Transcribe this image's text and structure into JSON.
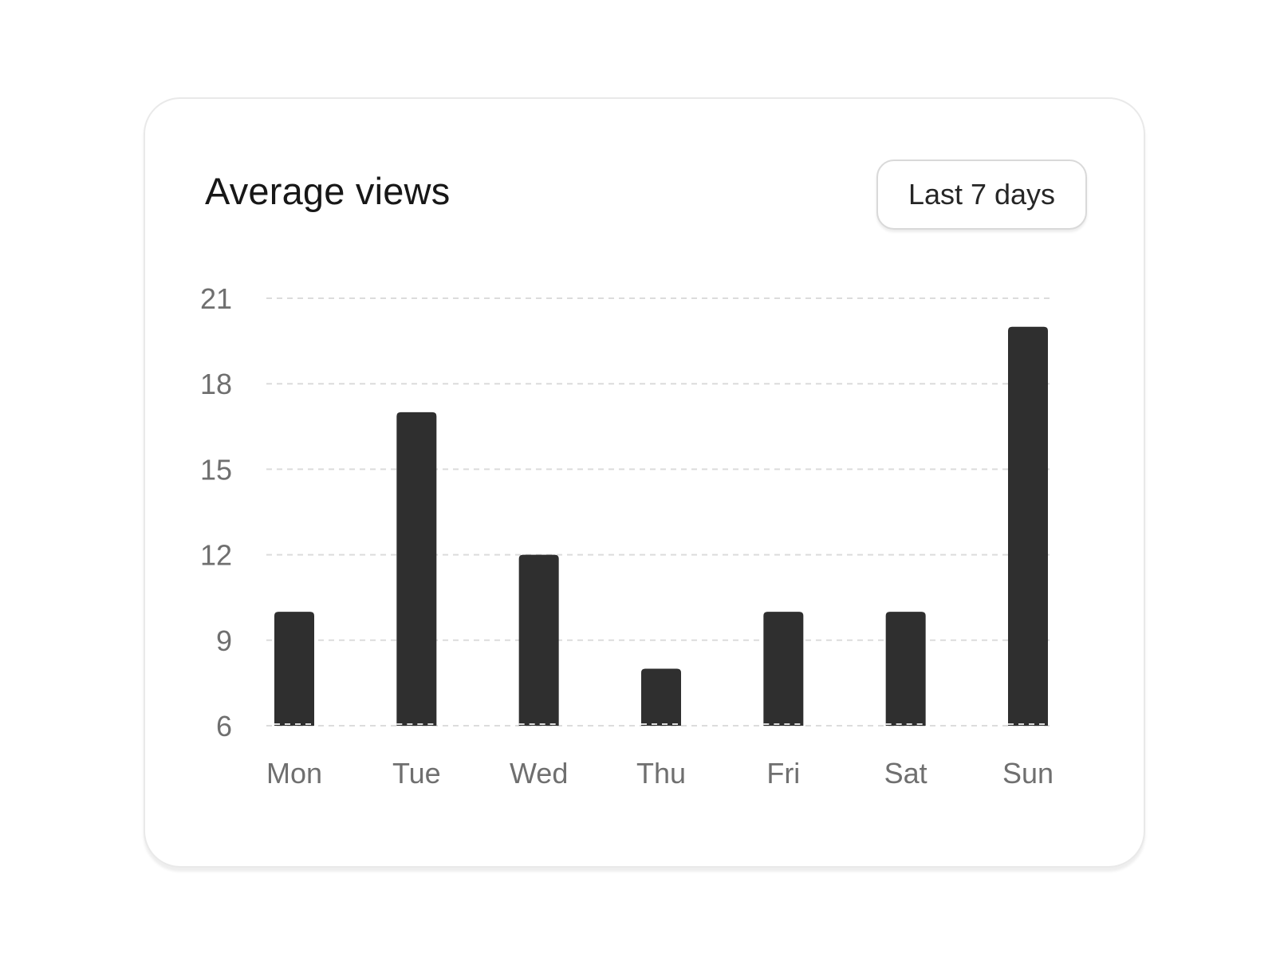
{
  "card": {
    "title": "Average views",
    "range_button_label": "Last 7 days"
  },
  "colors": {
    "bar": "#2f2f2f",
    "grid": "#dcdcdc",
    "tick_text": "#6f6f6f",
    "title_text": "#171717"
  },
  "chart_data": {
    "type": "bar",
    "title": "Average views",
    "categories": [
      "Mon",
      "Tue",
      "Wed",
      "Thu",
      "Fri",
      "Sat",
      "Sun"
    ],
    "values": [
      10,
      17,
      12,
      8,
      10,
      10,
      20
    ],
    "ylim": [
      6,
      21
    ],
    "yticks": [
      6,
      9,
      12,
      15,
      18,
      21
    ],
    "xlabel": "",
    "ylabel": "",
    "grid": "dashed horizontal",
    "legend": "none"
  }
}
